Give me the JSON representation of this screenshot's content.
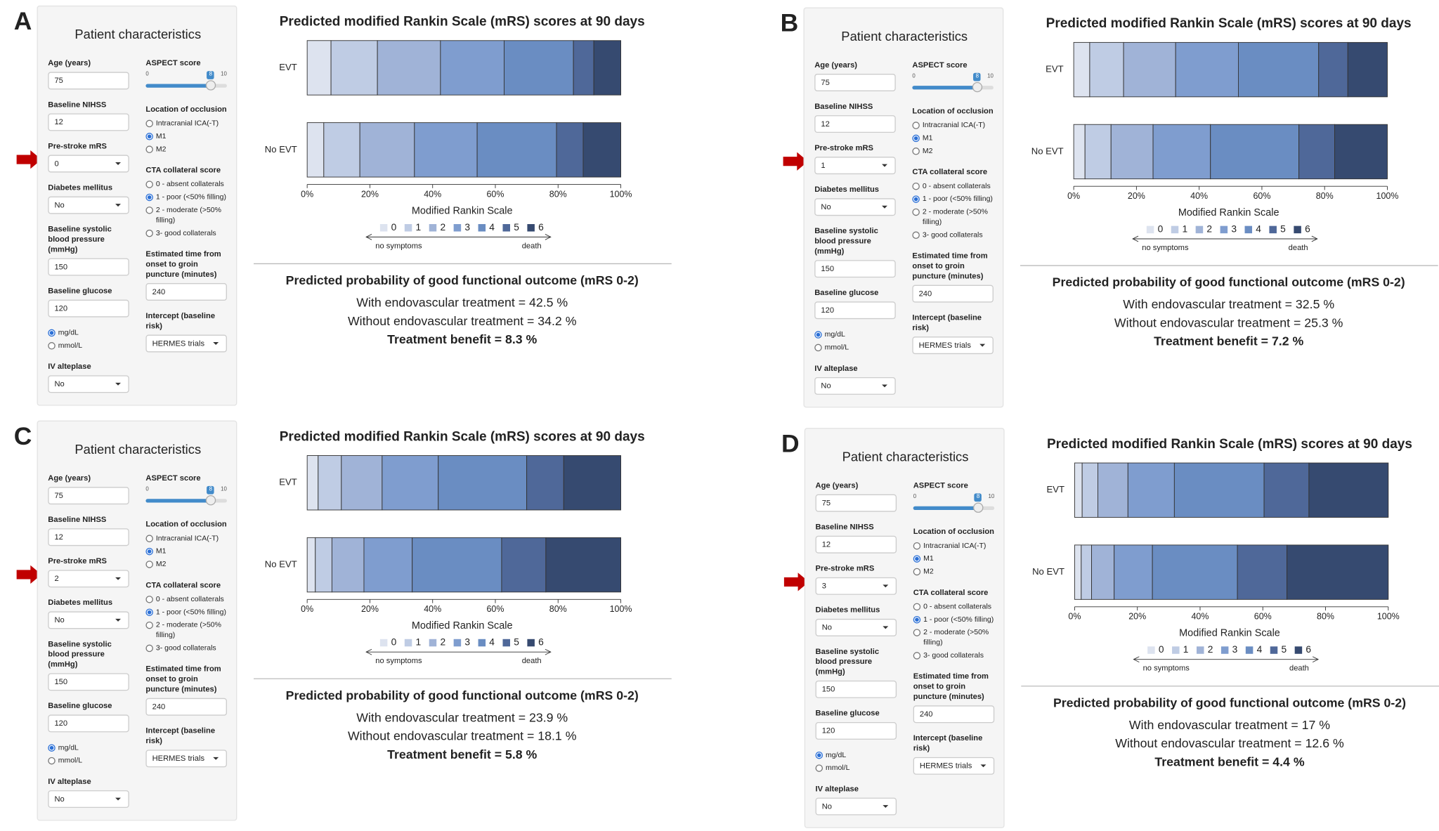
{
  "panels": [
    {
      "letter": "A",
      "form": {
        "title": "Patient characteristics",
        "left": [
          {
            "label": "Age (years)",
            "input": 75
          },
          {
            "label": "Baseline NIHSS",
            "input": 12
          },
          {
            "label": "Pre-stroke mRS",
            "select": 0
          },
          {
            "label": "Diabetes mellitus",
            "select": "No"
          },
          {
            "label": "Baseline systolic blood pressure (mmHg)",
            "input": 150
          },
          {
            "label": "Baseline glucose",
            "input": 120
          },
          {
            "options": [
              "mg/dL",
              "mmol/L"
            ],
            "checked": 0
          },
          {
            "label": "IV alteplase",
            "select": "No"
          }
        ],
        "right": [
          {
            "label": "ASPECT score",
            "slider": {
              "min": 0,
              "max": 10,
              "value": 8
            }
          },
          {
            "label": "Location of occlusion",
            "options": [
              "Intracranial ICA(-T)",
              "M1",
              "M2"
            ],
            "checked": 1
          },
          {
            "label": "CTA collateral score",
            "options": [
              "0 - absent collaterals",
              "1 - poor (<50% filling)",
              "2 - moderate (>50% filling)",
              "3- good collaterals"
            ],
            "checked": 1
          },
          {
            "label": "Estimated time from onset to groin puncture (minutes)",
            "input": 240
          },
          {
            "label": "Intercept (baseline risk)",
            "select": "HERMES trials"
          }
        ]
      },
      "outcome": {
        "heading": "Predicted probability of good functional outcome (mRS 0-2)",
        "lines": [
          "With endovascular treatment = 42.5 %",
          "Without endovascular treatment = 34.2 %",
          "Treatment benefit = 8.3 %"
        ]
      }
    },
    {
      "letter": "B",
      "form": {
        "title": "Patient characteristics",
        "left": [
          {
            "label": "Age (years)",
            "input": 75
          },
          {
            "label": "Baseline NIHSS",
            "input": 12
          },
          {
            "label": "Pre-stroke mRS",
            "select": 1
          },
          {
            "label": "Diabetes mellitus",
            "select": "No"
          },
          {
            "label": "Baseline systolic blood pressure (mmHg)",
            "input": 150
          },
          {
            "label": "Baseline glucose",
            "input": 120
          },
          {
            "options": [
              "mg/dL",
              "mmol/L"
            ],
            "checked": 0
          },
          {
            "label": "IV alteplase",
            "select": "No"
          }
        ],
        "right": [
          {
            "label": "ASPECT score",
            "slider": {
              "min": 0,
              "max": 10,
              "value": 8
            }
          },
          {
            "label": "Location of occlusion",
            "options": [
              "Intracranial ICA(-T)",
              "M1",
              "M2"
            ],
            "checked": 1
          },
          {
            "label": "CTA collateral score",
            "options": [
              "0 - absent collaterals",
              "1 - poor (<50% filling)",
              "2 - moderate (>50% filling)",
              "3- good collaterals"
            ],
            "checked": 1
          },
          {
            "label": "Estimated time from onset to groin puncture (minutes)",
            "input": 240
          },
          {
            "label": "Intercept (baseline risk)",
            "select": "HERMES trials"
          }
        ]
      },
      "outcome": {
        "heading": "Predicted probability of good functional outcome (mRS 0-2)",
        "lines": [
          "With endovascular treatment = 32.5 %",
          "Without endovascular treatment = 25.3 %",
          "Treatment benefit = 7.2 %"
        ]
      }
    },
    {
      "letter": "C",
      "form": {
        "title": "Patient characteristics",
        "left": [
          {
            "label": "Age (years)",
            "input": 75
          },
          {
            "label": "Baseline NIHSS",
            "input": 12
          },
          {
            "label": "Pre-stroke mRS",
            "select": 2
          },
          {
            "label": "Diabetes mellitus",
            "select": "No"
          },
          {
            "label": "Baseline systolic blood pressure (mmHg)",
            "input": 150
          },
          {
            "label": "Baseline glucose",
            "input": 120
          },
          {
            "options": [
              "mg/dL",
              "mmol/L"
            ],
            "checked": 0
          },
          {
            "label": "IV alteplase",
            "select": "No"
          }
        ],
        "right": [
          {
            "label": "ASPECT score",
            "slider": {
              "min": 0,
              "max": 10,
              "value": 8
            }
          },
          {
            "label": "Location of occlusion",
            "options": [
              "Intracranial ICA(-T)",
              "M1",
              "M2"
            ],
            "checked": 1
          },
          {
            "label": "CTA collateral score",
            "options": [
              "0 - absent collaterals",
              "1 - poor (<50% filling)",
              "2 - moderate (>50% filling)",
              "3- good collaterals"
            ],
            "checked": 1
          },
          {
            "label": "Estimated time from onset to groin puncture (minutes)",
            "input": 240
          },
          {
            "label": "Intercept (baseline risk)",
            "select": "HERMES trials"
          }
        ]
      },
      "outcome": {
        "heading": "Predicted probability of good functional outcome (mRS 0-2)",
        "lines": [
          "With endovascular treatment = 23.9 %",
          "Without endovascular treatment = 18.1 %",
          "Treatment benefit = 5.8 %"
        ]
      }
    },
    {
      "letter": "D",
      "form": {
        "title": "Patient characteristics",
        "left": [
          {
            "label": "Age (years)",
            "input": 75
          },
          {
            "label": "Baseline NIHSS",
            "input": 12
          },
          {
            "label": "Pre-stroke mRS",
            "select": 3
          },
          {
            "label": "Diabetes mellitus",
            "select": "No"
          },
          {
            "label": "Baseline systolic blood pressure (mmHg)",
            "input": 150
          },
          {
            "label": "Baseline glucose",
            "input": 120
          },
          {
            "options": [
              "mg/dL",
              "mmol/L"
            ],
            "checked": 0
          },
          {
            "label": "IV alteplase",
            "select": "No"
          }
        ],
        "right": [
          {
            "label": "ASPECT score",
            "slider": {
              "min": 0,
              "max": 10,
              "value": 8
            }
          },
          {
            "label": "Location of occlusion",
            "options": [
              "Intracranial ICA(-T)",
              "M1",
              "M2"
            ],
            "checked": 1
          },
          {
            "label": "CTA collateral score",
            "options": [
              "0 - absent collaterals",
              "1 - poor (<50% filling)",
              "2 - moderate (>50% filling)",
              "3- good collaterals"
            ],
            "checked": 1
          },
          {
            "label": "Estimated time from onset to groin puncture (minutes)",
            "input": 240
          },
          {
            "label": "Intercept (baseline risk)",
            "select": "HERMES trials"
          }
        ]
      },
      "outcome": {
        "heading": "Predicted probability of good functional outcome (mRS 0-2)",
        "lines": [
          "With endovascular treatment = 17 %",
          "Without endovascular treatment = 12.6 %",
          "Treatment benefit = 4.4 %"
        ]
      }
    }
  ],
  "chart_data": [
    {
      "type": "stacked-barh",
      "title": "Predicted modified Rankin Scale (mRS) scores at 90 days",
      "x_label": "Modified Rankin Scale",
      "categories": [
        "EVT",
        "No EVT"
      ],
      "xlim": [
        0,
        100
      ],
      "xticks": [
        {
          "value": 0,
          "label": "0%"
        },
        {
          "value": 20,
          "label": "20%"
        },
        {
          "value": 40,
          "label": "40%"
        },
        {
          "value": 60,
          "label": "60%"
        },
        {
          "value": 80,
          "label": "80%"
        },
        {
          "value": 100,
          "label": "100%"
        }
      ],
      "annotations": [
        "no symptoms",
        "death"
      ],
      "series": [
        {
          "name": "0",
          "color": "#dde3ef",
          "values": [
            7.6,
            5.3
          ]
        },
        {
          "name": "1",
          "color": "#bfcce4",
          "values": [
            14.8,
            11.5
          ]
        },
        {
          "name": "2",
          "color": "#a0b3d7",
          "values": [
            20.1,
            17.4
          ]
        },
        {
          "name": "3",
          "color": "#7f9dcf",
          "values": [
            20.3,
            20.0
          ]
        },
        {
          "name": "4",
          "color": "#6a8dc2",
          "values": [
            22.1,
            25.3
          ]
        },
        {
          "name": "5",
          "color": "#4f6899",
          "values": [
            6.5,
            8.5
          ]
        },
        {
          "name": "6",
          "color": "#364a70",
          "values": [
            8.6,
            12.0
          ]
        }
      ]
    },
    {
      "type": "stacked-barh",
      "title": "Predicted modified Rankin Scale (mRS) scores at 90 days",
      "x_label": "Modified Rankin Scale",
      "categories": [
        "EVT",
        "No EVT"
      ],
      "xlim": [
        0,
        100
      ],
      "xticks": [
        {
          "value": 0,
          "label": "0%"
        },
        {
          "value": 20,
          "label": "20%"
        },
        {
          "value": 40,
          "label": "40%"
        },
        {
          "value": 60,
          "label": "60%"
        },
        {
          "value": 80,
          "label": "80%"
        },
        {
          "value": 100,
          "label": "100%"
        }
      ],
      "annotations": [
        "no symptoms",
        "death"
      ],
      "series": [
        {
          "name": "0",
          "color": "#dde3ef",
          "values": [
            5.1,
            3.6
          ]
        },
        {
          "name": "1",
          "color": "#bfcce4",
          "values": [
            10.8,
            8.3
          ]
        },
        {
          "name": "2",
          "color": "#a0b3d7",
          "values": [
            16.6,
            13.4
          ]
        },
        {
          "name": "3",
          "color": "#7f9dcf",
          "values": [
            20.0,
            18.3
          ]
        },
        {
          "name": "4",
          "color": "#6a8dc2",
          "values": [
            25.6,
            28.2
          ]
        },
        {
          "name": "5",
          "color": "#4f6899",
          "values": [
            9.3,
            11.4
          ]
        },
        {
          "name": "6",
          "color": "#364a70",
          "values": [
            12.6,
            16.8
          ]
        }
      ]
    },
    {
      "type": "stacked-barh",
      "title": "Predicted modified Rankin Scale (mRS) scores at 90 days",
      "x_label": "Modified Rankin Scale",
      "categories": [
        "EVT",
        "No EVT"
      ],
      "xlim": [
        0,
        100
      ],
      "xticks": [
        {
          "value": 0,
          "label": "0%"
        },
        {
          "value": 20,
          "label": "20%"
        },
        {
          "value": 40,
          "label": "40%"
        },
        {
          "value": 60,
          "label": "60%"
        },
        {
          "value": 80,
          "label": "80%"
        },
        {
          "value": 100,
          "label": "100%"
        }
      ],
      "annotations": [
        "no symptoms",
        "death"
      ],
      "series": [
        {
          "name": "0",
          "color": "#dde3ef",
          "values": [
            3.5,
            2.6
          ]
        },
        {
          "name": "1",
          "color": "#bfcce4",
          "values": [
            7.4,
            5.3
          ]
        },
        {
          "name": "2",
          "color": "#a0b3d7",
          "values": [
            13.0,
            10.2
          ]
        },
        {
          "name": "3",
          "color": "#7f9dcf",
          "values": [
            17.9,
            15.4
          ]
        },
        {
          "name": "4",
          "color": "#6a8dc2",
          "values": [
            28.2,
            28.5
          ]
        },
        {
          "name": "5",
          "color": "#4f6899",
          "values": [
            11.8,
            14.1
          ]
        },
        {
          "name": "6",
          "color": "#364a70",
          "values": [
            18.2,
            23.9
          ]
        }
      ]
    },
    {
      "type": "stacked-barh",
      "title": "Predicted modified Rankin Scale (mRS) scores at 90 days",
      "x_label": "Modified Rankin Scale",
      "categories": [
        "EVT",
        "No EVT"
      ],
      "xlim": [
        0,
        100
      ],
      "xticks": [
        {
          "value": 0,
          "label": "0%"
        },
        {
          "value": 20,
          "label": "20%"
        },
        {
          "value": 40,
          "label": "40%"
        },
        {
          "value": 60,
          "label": "60%"
        },
        {
          "value": 80,
          "label": "80%"
        },
        {
          "value": 100,
          "label": "100%"
        }
      ],
      "annotations": [
        "no symptoms",
        "death"
      ],
      "series": [
        {
          "name": "0",
          "color": "#dde3ef",
          "values": [
            2.4,
            2.1
          ]
        },
        {
          "name": "1",
          "color": "#bfcce4",
          "values": [
            5.0,
            3.3
          ]
        },
        {
          "name": "2",
          "color": "#a0b3d7",
          "values": [
            9.6,
            7.2
          ]
        },
        {
          "name": "3",
          "color": "#7f9dcf",
          "values": [
            14.8,
            12.2
          ]
        },
        {
          "name": "4",
          "color": "#6a8dc2",
          "values": [
            28.6,
            27.1
          ]
        },
        {
          "name": "5",
          "color": "#4f6899",
          "values": [
            14.3,
            15.8
          ]
        },
        {
          "name": "6",
          "color": "#364a70",
          "values": [
            25.3,
            32.3
          ]
        }
      ]
    }
  ]
}
